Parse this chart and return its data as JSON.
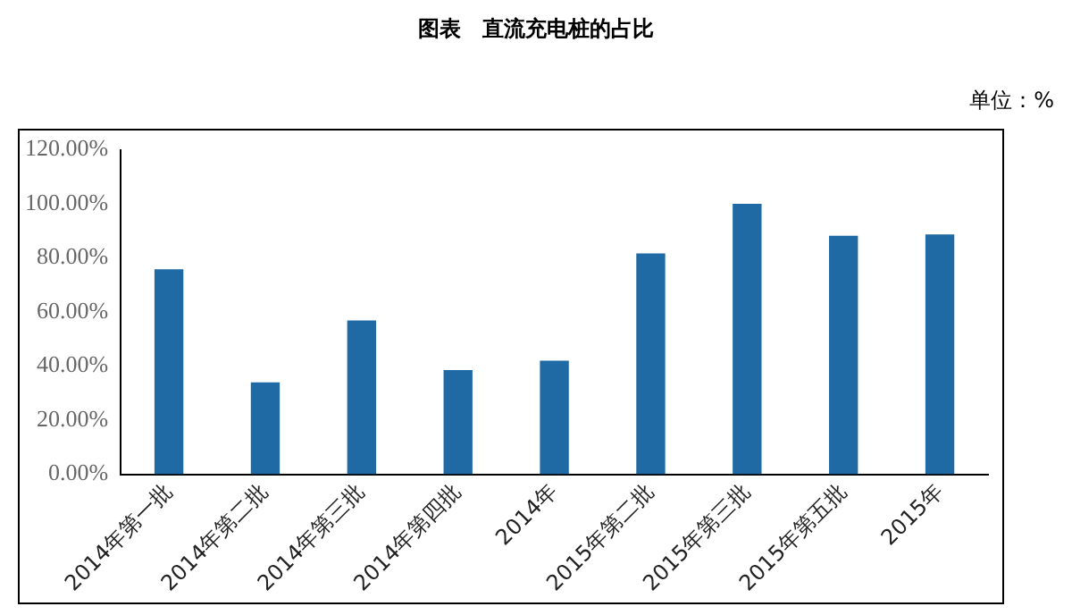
{
  "chart_data": {
    "type": "bar",
    "title": "图表　直流充电桩的占比",
    "annotations": [
      "单位：%"
    ],
    "categories": [
      "2014年第一批",
      "2014年第二批",
      "2014年第三批",
      "2014年第四批",
      "2014年",
      "2015年第二批",
      "2015年第三批",
      "2015年第五批",
      "2015年"
    ],
    "values": [
      75.8,
      34,
      56.9,
      38.5,
      42,
      81.7,
      100,
      88.2,
      88.7
    ],
    "color": "#1f6aa5",
    "ylim": [
      0,
      120
    ],
    "yticks": [
      {
        "value": 0,
        "label": "0.00%"
      },
      {
        "value": 20,
        "label": "20.00%"
      },
      {
        "value": 40,
        "label": "40.00%"
      },
      {
        "value": 60,
        "label": "60.00%"
      },
      {
        "value": 80,
        "label": "80.00%"
      },
      {
        "value": 100,
        "label": "100.00%"
      },
      {
        "value": 120,
        "label": "120.00%"
      }
    ],
    "grid": false,
    "legend": false
  }
}
